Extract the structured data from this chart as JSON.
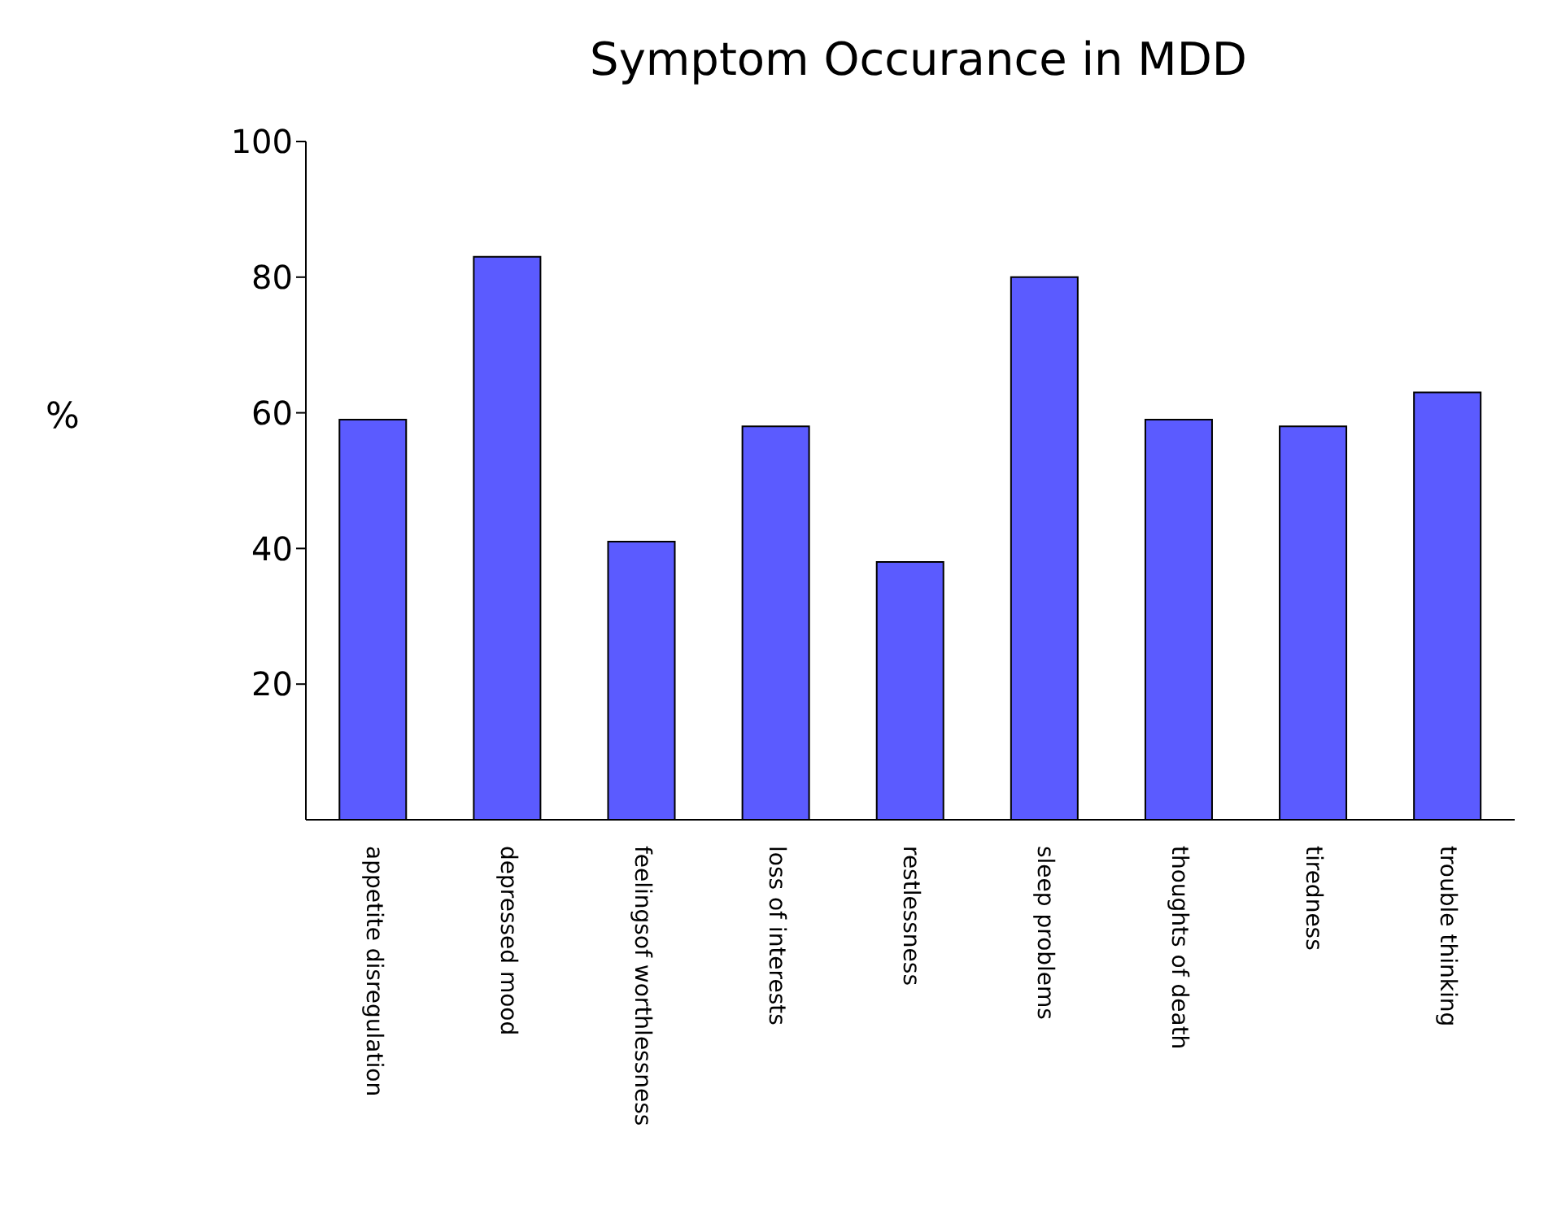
{
  "chart_data": {
    "type": "bar",
    "title": "Symptom Occurance in MDD",
    "ylabel": "%",
    "categories": [
      "appetite disregulation",
      "depressed mood",
      "feelingsof worthlessness",
      "loss of interests",
      "restlessness",
      "sleep problems",
      "thoughts of death",
      "tiredness",
      "trouble thinking"
    ],
    "values": [
      59,
      83,
      41,
      58,
      38,
      80,
      59,
      58,
      63
    ],
    "color": "#5b5bff",
    "ylim": [
      0,
      100
    ],
    "yticks": [
      20,
      40,
      60,
      80,
      100
    ],
    "grid": false,
    "legend": false
  }
}
